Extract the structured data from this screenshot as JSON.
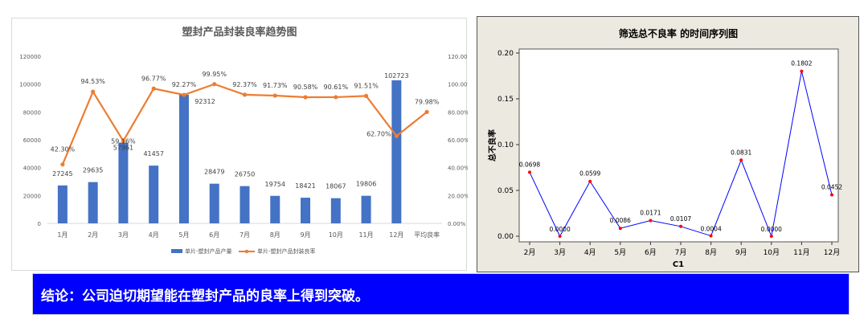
{
  "chart_data": [
    {
      "type": "bar+line",
      "title": "塑封产品封装良率趋势图",
      "categories": [
        "1月",
        "2月",
        "3月",
        "4月",
        "5月",
        "6月",
        "7月",
        "8月",
        "9月",
        "10月",
        "11月",
        "12月",
        "平均良率"
      ],
      "series": [
        {
          "name": "单片-塑封产品产量",
          "type": "bar",
          "color": "#4472c4",
          "values": [
            27245,
            29635,
            57961,
            41457,
            92312,
            28479,
            26750,
            19754,
            18421,
            18067,
            19806,
            102723,
            null
          ],
          "labels": [
            "27245",
            "29635",
            "57961",
            "41457",
            "92312",
            "28479",
            "26750",
            "19754",
            "18421",
            "18067",
            "19806",
            "102723",
            ""
          ]
        },
        {
          "name": "单片-塑封产品封装良率",
          "type": "line",
          "color": "#ed7d31",
          "axis": "right",
          "values": [
            42.3,
            94.53,
            59.16,
            96.77,
            92.27,
            99.95,
            92.37,
            91.73,
            90.58,
            90.61,
            91.51,
            62.7,
            79.98
          ],
          "labels": [
            "42.30%",
            "94.53%",
            "59.16%",
            "96.77%",
            "92.27%",
            "99.95%",
            "92.37%",
            "91.73%",
            "90.58%",
            "90.61%",
            "91.51%",
            "62.70%",
            "79.98%"
          ]
        }
      ],
      "y_left": {
        "min": 0,
        "max": 120000,
        "ticks": [
          "0",
          "20000",
          "40000",
          "60000",
          "80000",
          "100000",
          "120000"
        ]
      },
      "y_right": {
        "min": 0,
        "max": 120,
        "ticks": [
          "0.00%",
          "20.00%",
          "40.00%",
          "60.00%",
          "80.00%",
          "100.00%",
          "120.00%"
        ]
      },
      "grid": false,
      "legend": "bottom"
    },
    {
      "type": "line",
      "title": "筛选总不良率 的时间序列图",
      "xlabel": "C1",
      "ylabel": "总不良率",
      "categories": [
        "2月",
        "3月",
        "4月",
        "5月",
        "6月",
        "7月",
        "8月",
        "9月",
        "10月",
        "11月",
        "12月"
      ],
      "values": [
        0.0698,
        0.0,
        0.0599,
        0.0086,
        0.0171,
        0.0107,
        0.0004,
        0.0831,
        0.0,
        0.1802,
        0.0452
      ],
      "labels": [
        "0.0698",
        "0.0000",
        "0.0599",
        "0.0086",
        "0.0171",
        "0.0107",
        "0.0004",
        "0.0831",
        "0.0000",
        "0.1802",
        "0.0452"
      ],
      "ylim": [
        0,
        0.2
      ],
      "yticks": [
        "0.00",
        "0.05",
        "0.10",
        "0.15",
        "0.20"
      ],
      "line_color": "#0000ff",
      "marker_color": "#ff0000"
    }
  ],
  "conclusion": "结论：公司迫切期望能在塑封产品的良率上得到突破。"
}
